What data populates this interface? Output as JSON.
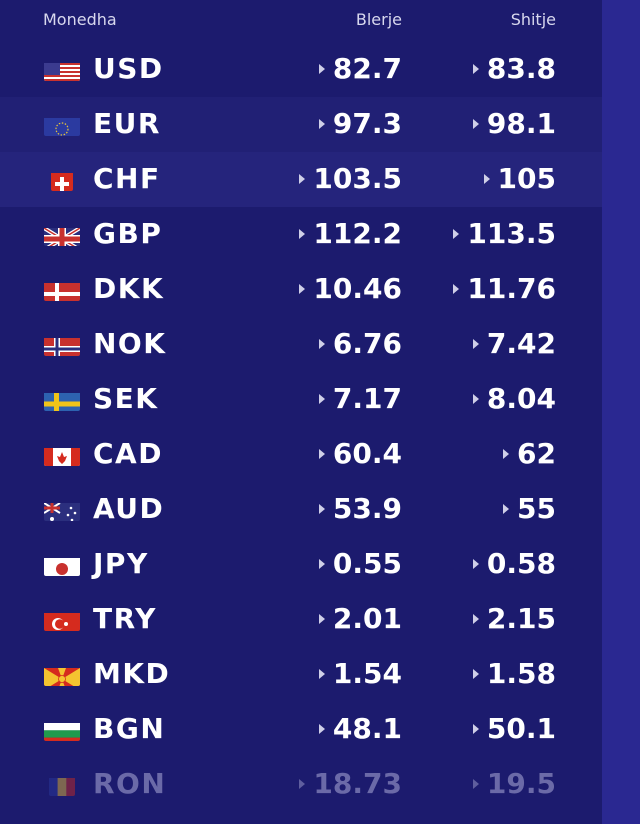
{
  "header": {
    "currency": "Monedha",
    "buy": "Blerje",
    "sell": "Shitje"
  },
  "rows": [
    {
      "code": "USD",
      "flag": "us-flag-icon",
      "buy": "82.7",
      "sell": "83.8"
    },
    {
      "code": "EUR",
      "flag": "eu-flag-icon",
      "buy": "97.3",
      "sell": "98.1"
    },
    {
      "code": "CHF",
      "flag": "ch-flag-icon",
      "buy": "103.5",
      "sell": "105"
    },
    {
      "code": "GBP",
      "flag": "gb-flag-icon",
      "buy": "112.2",
      "sell": "113.5"
    },
    {
      "code": "DKK",
      "flag": "dk-flag-icon",
      "buy": "10.46",
      "sell": "11.76"
    },
    {
      "code": "NOK",
      "flag": "no-flag-icon",
      "buy": "6.76",
      "sell": "7.42"
    },
    {
      "code": "SEK",
      "flag": "se-flag-icon",
      "buy": "7.17",
      "sell": "8.04"
    },
    {
      "code": "CAD",
      "flag": "ca-flag-icon",
      "buy": "60.4",
      "sell": "62"
    },
    {
      "code": "AUD",
      "flag": "au-flag-icon",
      "buy": "53.9",
      "sell": "55"
    },
    {
      "code": "JPY",
      "flag": "jp-flag-icon",
      "buy": "0.55",
      "sell": "0.58"
    },
    {
      "code": "TRY",
      "flag": "tr-flag-icon",
      "buy": "2.01",
      "sell": "2.15"
    },
    {
      "code": "MKD",
      "flag": "mk-flag-icon",
      "buy": "1.54",
      "sell": "1.58"
    },
    {
      "code": "BGN",
      "flag": "bg-flag-icon",
      "buy": "48.1",
      "sell": "50.1"
    },
    {
      "code": "RON",
      "flag": "ro-flag-icon",
      "buy": "18.73",
      "sell": "19.5"
    }
  ],
  "colors": {
    "background": "#1c1b6e",
    "highlight": "#25247c",
    "side_strip": "#2a2891",
    "text": "#ffffff"
  }
}
